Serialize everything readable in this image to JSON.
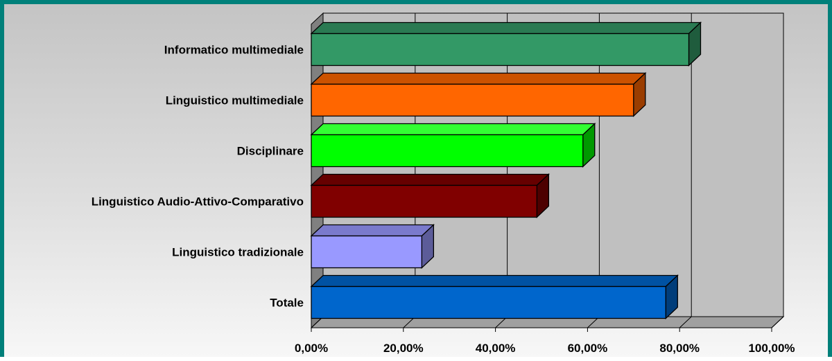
{
  "chart_data": {
    "type": "bar",
    "orientation": "horizontal",
    "style": "3d",
    "categories": [
      "Informatico multimediale",
      "Linguistico multimediale",
      "Disciplinare",
      "Linguistico Audio-Attivo-Comparativo",
      "Linguistico tradizionale",
      "Totale"
    ],
    "values": [
      82.0,
      70.0,
      59.0,
      49.0,
      24.0,
      77.0
    ],
    "value_format": "percent",
    "xlim": [
      0,
      100
    ],
    "xticks": [
      "0,00%",
      "20,00%",
      "40,00%",
      "60,00%",
      "80,00%",
      "100,00%"
    ],
    "grid": true,
    "legend": "none",
    "colors": [
      "#339966",
      "#ff6600",
      "#00ff00",
      "#800000",
      "#9999ff",
      "#0066cc"
    ],
    "side_colors": [
      "#1f5c3d",
      "#9a3d00",
      "#009900",
      "#4d0000",
      "#5c5c99",
      "#003d7a"
    ],
    "top_colors": [
      "#2a7a52",
      "#cc5200",
      "#33ff33",
      "#660000",
      "#7a7acc",
      "#0052a3"
    ]
  }
}
